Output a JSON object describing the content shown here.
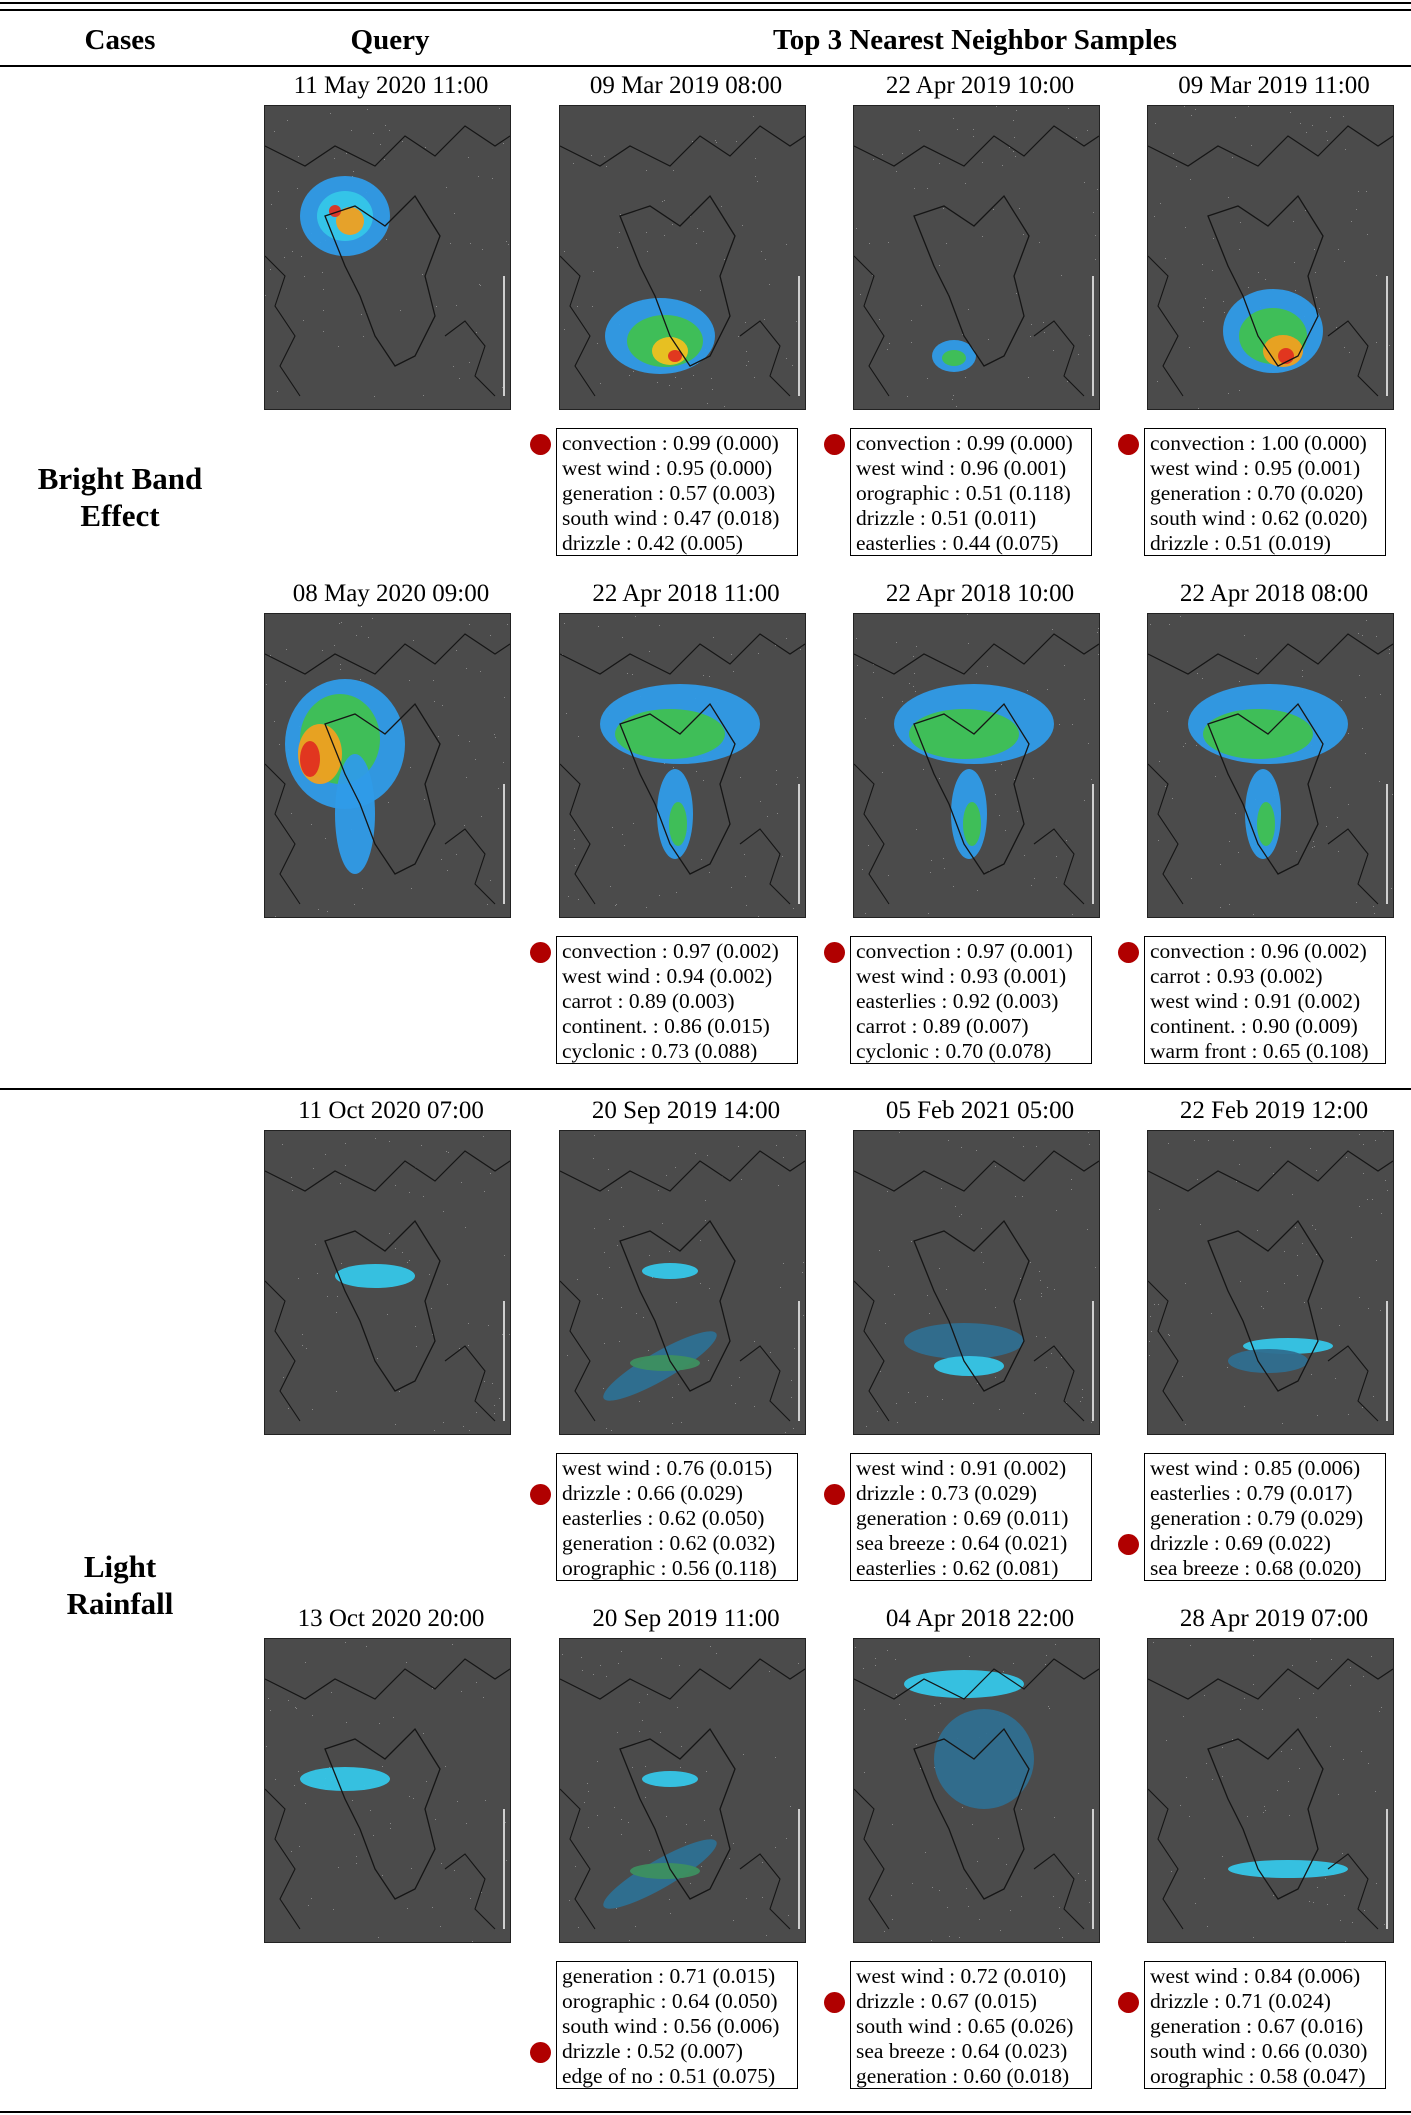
{
  "header": {
    "cases": "Cases",
    "query": "Query",
    "neighbors": "Top 3 Nearest Neighbor Samples"
  },
  "groups": [
    {
      "label": [
        "Bright Band",
        "Effect"
      ],
      "rows": [
        {
          "query_time": "11 May 2020 11:00",
          "query_pattern": "bb1",
          "neighbors": [
            {
              "time": "09 Mar 2019 08:00",
              "pattern": "bb1n1",
              "dot": 0,
              "attrs": [
                "convection : 0.99 (0.000)",
                "west wind : 0.95 (0.000)",
                "generation : 0.57 (0.003)",
                "south wind : 0.47 (0.018)",
                "drizzle : 0.42 (0.005)"
              ]
            },
            {
              "time": "22 Apr 2019 10:00",
              "pattern": "bb1n2",
              "dot": 0,
              "attrs": [
                "convection : 0.99 (0.000)",
                "west wind : 0.96 (0.001)",
                "orographic : 0.51 (0.118)",
                "drizzle : 0.51 (0.011)",
                "easterlies : 0.44 (0.075)"
              ]
            },
            {
              "time": "09 Mar 2019 11:00",
              "pattern": "bb1n3",
              "dot": 0,
              "attrs": [
                "convection : 1.00 (0.000)",
                "west wind : 0.95 (0.001)",
                "generation : 0.70 (0.020)",
                "south wind : 0.62 (0.020)",
                "drizzle : 0.51 (0.019)"
              ]
            }
          ]
        },
        {
          "query_time": "08 May 2020 09:00",
          "query_pattern": "bb2",
          "neighbors": [
            {
              "time": "22 Apr 2018 11:00",
              "pattern": "bb2n",
              "dot": 0,
              "attrs": [
                "convection : 0.97 (0.002)",
                "west wind : 0.94 (0.002)",
                "carrot : 0.89 (0.003)",
                "continent. : 0.86 (0.015)",
                "cyclonic : 0.73 (0.088)"
              ]
            },
            {
              "time": "22 Apr 2018 10:00",
              "pattern": "bb2n",
              "dot": 0,
              "attrs": [
                "convection : 0.97 (0.001)",
                "west wind : 0.93 (0.001)",
                "easterlies : 0.92 (0.003)",
                "carrot : 0.89 (0.007)",
                "cyclonic : 0.70 (0.078)"
              ]
            },
            {
              "time": "22 Apr 2018 08:00",
              "pattern": "bb2n",
              "dot": 0,
              "attrs": [
                "convection : 0.96 (0.002)",
                "carrot : 0.93 (0.002)",
                "west wind : 0.91 (0.002)",
                "continent. : 0.90 (0.009)",
                "warm front : 0.65 (0.108)"
              ]
            }
          ]
        }
      ]
    },
    {
      "label": [
        "Light",
        "Rainfall"
      ],
      "rows": [
        {
          "query_time": "11 Oct 2020 07:00",
          "query_pattern": "lr1",
          "neighbors": [
            {
              "time": "20 Sep 2019 14:00",
              "pattern": "lrband",
              "dot": 1,
              "attrs": [
                "west wind : 0.76 (0.015)",
                "drizzle : 0.66 (0.029)",
                "easterlies : 0.62 (0.050)",
                "generation : 0.62 (0.032)",
                "orographic : 0.56 (0.118)"
              ]
            },
            {
              "time": "05 Feb 2021 05:00",
              "pattern": "lr1n2",
              "dot": 1,
              "attrs": [
                "west wind : 0.91 (0.002)",
                "drizzle : 0.73 (0.029)",
                "generation : 0.69 (0.011)",
                "sea breeze : 0.64 (0.021)",
                "easterlies : 0.62 (0.081)"
              ]
            },
            {
              "time": "22 Feb 2019 12:00",
              "pattern": "lr1n3",
              "dot": 3,
              "attrs": [
                "west wind : 0.85 (0.006)",
                "easterlies : 0.79 (0.017)",
                "generation : 0.79 (0.029)",
                "drizzle : 0.69 (0.022)",
                "sea breeze : 0.68 (0.020)"
              ]
            }
          ]
        },
        {
          "query_time": "13 Oct 2020 20:00",
          "query_pattern": "lr2",
          "neighbors": [
            {
              "time": "20 Sep 2019 11:00",
              "pattern": "lrband",
              "dot": 3,
              "attrs": [
                "generation : 0.71 (0.015)",
                "orographic : 0.64 (0.050)",
                "south wind : 0.56 (0.006)",
                "drizzle : 0.52 (0.007)",
                "edge of no : 0.51 (0.075)"
              ]
            },
            {
              "time": "04 Apr 2018 22:00",
              "pattern": "lr2n2",
              "dot": 1,
              "attrs": [
                "west wind : 0.72 (0.010)",
                "drizzle : 0.67 (0.015)",
                "south wind : 0.65 (0.026)",
                "sea breeze : 0.64 (0.023)",
                "generation : 0.60 (0.018)"
              ]
            },
            {
              "time": "28 Apr 2019 07:00",
              "pattern": "lr2n3",
              "dot": 1,
              "attrs": [
                "west wind : 0.84 (0.006)",
                "drizzle : 0.71 (0.024)",
                "generation : 0.67 (0.016)",
                "south wind : 0.66 (0.030)",
                "orographic : 0.58 (0.047)"
              ]
            }
          ]
        }
      ]
    }
  ]
}
